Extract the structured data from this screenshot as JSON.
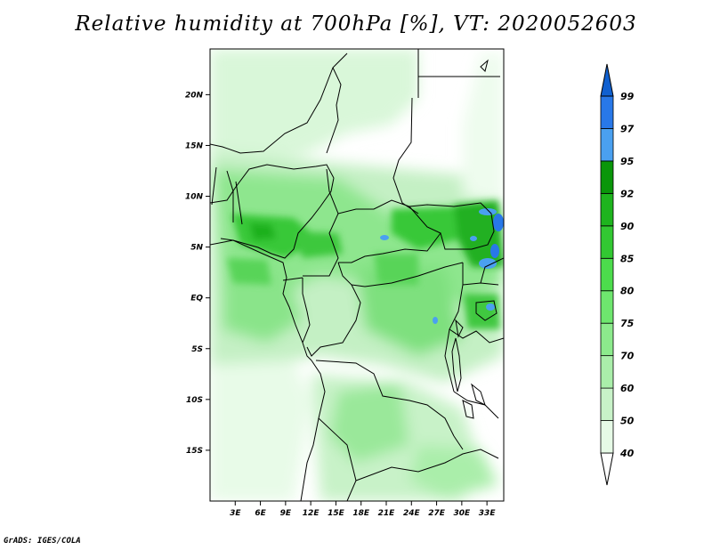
{
  "title": "Relative humidity at 700hPa [%], VT: 2020052603",
  "credit": "GrADS: IGES/COLA",
  "map": {
    "lat_labels": [
      {
        "label": "20N",
        "lat": 20
      },
      {
        "label": "15N",
        "lat": 15
      },
      {
        "label": "10N",
        "lat": 10
      },
      {
        "label": "5N",
        "lat": 5
      },
      {
        "label": "EQ",
        "lat": 0
      },
      {
        "label": "5S",
        "lat": -5
      },
      {
        "label": "10S",
        "lat": -10
      },
      {
        "label": "15S",
        "lat": -15
      }
    ],
    "lon_labels": [
      {
        "label": "3E",
        "lon": 3
      },
      {
        "label": "6E",
        "lon": 6
      },
      {
        "label": "9E",
        "lon": 9
      },
      {
        "label": "12E",
        "lon": 12
      },
      {
        "label": "15E",
        "lon": 15
      },
      {
        "label": "18E",
        "lon": 18
      },
      {
        "label": "21E",
        "lon": 21
      },
      {
        "label": "24E",
        "lon": 24
      },
      {
        "label": "27E",
        "lon": 27
      },
      {
        "label": "30E",
        "lon": 30
      },
      {
        "label": "33E",
        "lon": 33
      }
    ],
    "lon_range": [
      0,
      35
    ],
    "lat_range": [
      -20,
      24.5
    ]
  },
  "colorbar": {
    "levels": [
      "40",
      "50",
      "60",
      "70",
      "75",
      "80",
      "85",
      "90",
      "92",
      "95",
      "97",
      "99"
    ],
    "colors": [
      "#ffffff",
      "#e6fae6",
      "#c8f2c8",
      "#aaeeaa",
      "#8cea8c",
      "#6ee66e",
      "#4cdc4c",
      "#32c832",
      "#1eb41e",
      "#0a960a",
      "#4aa0f0",
      "#2878e8",
      "#1060d0"
    ]
  }
}
